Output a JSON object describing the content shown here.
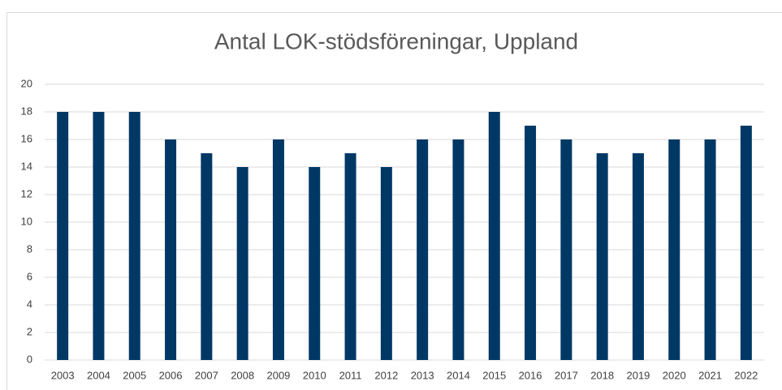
{
  "chart_data": {
    "type": "bar",
    "title": "Antal LOK-stödsföreningar, Uppland",
    "categories": [
      "2003",
      "2004",
      "2005",
      "2006",
      "2007",
      "2008",
      "2009",
      "2010",
      "2011",
      "2012",
      "2013",
      "2014",
      "2015",
      "2016",
      "2017",
      "2018",
      "2019",
      "2020",
      "2021",
      "2022"
    ],
    "values": [
      18,
      18,
      18,
      16,
      15,
      14,
      16,
      14,
      15,
      14,
      16,
      16,
      18,
      17,
      16,
      15,
      15,
      16,
      16,
      17
    ],
    "color": "#003865",
    "ylim": [
      0,
      20
    ],
    "yticks": [
      0,
      2,
      4,
      6,
      8,
      10,
      12,
      14,
      16,
      18,
      20
    ],
    "grid": true
  }
}
